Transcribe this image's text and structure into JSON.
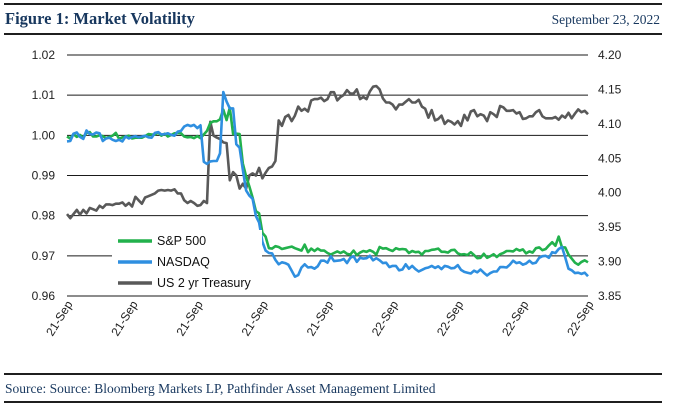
{
  "header": {
    "title": "Figure 1: Market Volatility",
    "date": "September 23, 2022"
  },
  "footer": {
    "source": "Source: Source: Bloomberg Markets LP, Pathfinder Asset Management Limited"
  },
  "chart_data": {
    "type": "line",
    "title": "Market Volatility",
    "xlabel": "",
    "ylabel_left": "",
    "ylabel_right": "",
    "x_tick_labels": [
      "21-Sep",
      "21-Sep",
      "21-Sep",
      "21-Sep",
      "21-Sep",
      "22-Sep",
      "22-Sep",
      "22-Sep",
      "22-Sep"
    ],
    "ylim_left": [
      0.96,
      1.02
    ],
    "yticks_left": [
      "0.96",
      "0.97",
      "0.98",
      "0.99",
      "1.00",
      "1.01",
      "1.02"
    ],
    "ylim_right": [
      3.85,
      4.2
    ],
    "yticks_right": [
      "3.85",
      "3.90",
      "3.95",
      "4.00",
      "4.05",
      "4.10",
      "4.15",
      "4.20"
    ],
    "grid": "horizontal",
    "legend_position": "lower-left",
    "series": [
      {
        "name": "S&P 500",
        "axis": "left",
        "color": "#22b14c",
        "x": [
          0,
          0.05,
          0.1,
          0.15,
          0.2,
          0.25,
          0.3,
          0.35,
          0.4,
          0.45,
          0.5,
          0.55,
          0.6,
          0.65,
          0.7,
          0.75,
          0.8,
          0.85,
          0.9,
          0.95,
          1,
          1.05,
          1.1,
          1.15,
          1.2,
          1.25,
          1.3,
          1.35,
          1.4,
          1.45,
          1.5,
          1.55,
          1.6,
          1.65,
          1.7,
          1.75,
          1.8,
          1.85,
          1.9,
          1.95,
          2,
          2.05,
          2.1,
          2.15,
          2.2,
          2.25,
          2.3,
          2.35,
          2.4,
          2.45,
          2.5,
          2.55,
          2.6,
          2.65,
          2.7,
          2.75,
          2.8,
          2.85,
          2.9,
          2.95,
          3,
          3.05,
          3.1,
          3.15,
          3.2,
          3.25,
          3.3,
          3.35,
          3.4,
          3.45,
          3.5,
          3.55,
          3.6,
          3.65,
          3.7,
          3.75,
          3.8,
          3.85,
          3.9,
          3.95,
          4,
          4.05,
          4.1,
          4.15,
          4.2,
          4.25,
          4.3,
          4.35,
          4.4,
          4.45,
          4.5,
          4.55,
          4.6,
          4.65,
          4.7,
          4.75,
          4.8,
          4.85,
          4.9,
          4.95,
          5,
          5.05,
          5.1,
          5.15,
          5.2,
          5.25,
          5.3,
          5.35,
          5.4,
          5.45,
          5.5,
          5.55,
          5.6,
          5.65,
          5.7,
          5.75,
          5.8,
          5.85,
          5.9,
          5.95,
          6,
          6.05,
          6.1,
          6.15,
          6.2,
          6.25,
          6.3,
          6.35,
          6.4,
          6.45,
          6.5,
          6.55,
          6.6,
          6.65,
          6.7,
          6.75,
          6.8,
          6.85,
          6.9,
          6.95,
          7,
          7.05,
          7.1,
          7.15,
          7.2,
          7.25,
          7.3,
          7.35,
          7.4,
          7.45,
          7.5,
          7.55,
          7.6,
          7.65,
          7.7,
          7.75,
          7.8,
          7.85,
          7.9,
          7.95,
          8
        ],
        "values": [
          0.9997,
          0.9992,
          1.0003,
          0.9996,
          1.0001,
          0.9994,
          1.0006,
          1.0008,
          0.9997,
          0.9997,
          1.0,
          0.9998,
          0.9993,
          0.9996,
          0.9999,
          1.0006,
          0.9991,
          0.9995,
          0.9997,
          0.9999,
          0.9992,
          0.9994,
          0.9994,
          0.9994,
          0.9998,
          1.0003,
          1.0002,
          1.0002,
          1.0007,
          0.9999,
          1.0004,
          0.9997,
          1.0001,
          1.0005,
          1.0006,
          1.0005,
          0.9997,
          0.9995,
          0.9996,
          0.9993,
          0.9998,
          0.9993,
          1.0002,
          1.0011,
          1.0031,
          1.0035,
          1.0035,
          1.004,
          1.0064,
          1.0038,
          1.0069,
          1.0003,
          1.0004,
          1.0003,
          0.993,
          0.9898,
          0.9873,
          0.9845,
          0.9811,
          0.9806,
          0.9757,
          0.9748,
          0.9719,
          0.9718,
          0.9724,
          0.9722,
          0.9717,
          0.9719,
          0.9721,
          0.9723,
          0.9719,
          0.9716,
          0.9713,
          0.9728,
          0.9709,
          0.9718,
          0.9712,
          0.9718,
          0.9713,
          0.9713,
          0.9707,
          0.9703,
          0.9707,
          0.9711,
          0.9707,
          0.9711,
          0.9705,
          0.9703,
          0.9713,
          0.9702,
          0.9708,
          0.9712,
          0.971,
          0.9714,
          0.971,
          0.9703,
          0.9722,
          0.9718,
          0.9719,
          0.9715,
          0.9712,
          0.9719,
          0.9716,
          0.9717,
          0.9716,
          0.9707,
          0.9712,
          0.9709,
          0.971,
          0.9703,
          0.9712,
          0.9712,
          0.9715,
          0.9716,
          0.9718,
          0.971,
          0.971,
          0.9708,
          0.9714,
          0.9715,
          0.9706,
          0.9703,
          0.9704,
          0.9702,
          0.9709,
          0.9702,
          0.9694,
          0.9695,
          0.9705,
          0.9695,
          0.9699,
          0.9704,
          0.9697,
          0.9704,
          0.9707,
          0.9712,
          0.9712,
          0.9711,
          0.9717,
          0.9713,
          0.9716,
          0.9706,
          0.9711,
          0.9708,
          0.9719,
          0.9721,
          0.9714,
          0.9717,
          0.9726,
          0.9734,
          0.9725,
          0.9748,
          0.9721,
          0.9721,
          0.9703,
          0.9693,
          0.9683,
          0.9678,
          0.9685,
          0.9689,
          0.9684
        ]
      },
      {
        "name": "NASDAQ",
        "axis": "left",
        "color": "#2f8fe0",
        "x": [
          0,
          0.05,
          0.1,
          0.15,
          0.2,
          0.25,
          0.3,
          0.35,
          0.4,
          0.45,
          0.5,
          0.55,
          0.6,
          0.65,
          0.7,
          0.75,
          0.8,
          0.85,
          0.9,
          0.95,
          1,
          1.05,
          1.1,
          1.15,
          1.2,
          1.25,
          1.3,
          1.35,
          1.4,
          1.45,
          1.5,
          1.55,
          1.6,
          1.65,
          1.7,
          1.75,
          1.8,
          1.85,
          1.9,
          1.95,
          2,
          2.05,
          2.1,
          2.15,
          2.2,
          2.25,
          2.3,
          2.35,
          2.4,
          2.45,
          2.5,
          2.55,
          2.6,
          2.65,
          2.7,
          2.75,
          2.8,
          2.85,
          2.9,
          2.95,
          3,
          3.05,
          3.1,
          3.15,
          3.2,
          3.25,
          3.3,
          3.35,
          3.4,
          3.45,
          3.5,
          3.55,
          3.6,
          3.65,
          3.7,
          3.75,
          3.8,
          3.85,
          3.9,
          3.95,
          4,
          4.05,
          4.1,
          4.15,
          4.2,
          4.25,
          4.3,
          4.35,
          4.4,
          4.45,
          4.5,
          4.55,
          4.6,
          4.65,
          4.7,
          4.75,
          4.8,
          4.85,
          4.9,
          4.95,
          5,
          5.05,
          5.1,
          5.15,
          5.2,
          5.25,
          5.3,
          5.35,
          5.4,
          5.45,
          5.5,
          5.55,
          5.6,
          5.65,
          5.7,
          5.75,
          5.8,
          5.85,
          5.9,
          5.95,
          6,
          6.05,
          6.1,
          6.15,
          6.2,
          6.25,
          6.3,
          6.35,
          6.4,
          6.45,
          6.5,
          6.55,
          6.6,
          6.65,
          6.7,
          6.75,
          6.8,
          6.85,
          6.9,
          6.95,
          7,
          7.05,
          7.1,
          7.15,
          7.2,
          7.25,
          7.3,
          7.35,
          7.4,
          7.45,
          7.5,
          7.55,
          7.6,
          7.65,
          7.7,
          7.75,
          7.8,
          7.85,
          7.9,
          7.95,
          8
        ],
        "values": [
          0.9985,
          0.9986,
          1.0004,
          1.0007,
          0.9996,
          0.9991,
          1.0012,
          1.0003,
          1.0002,
          1.0007,
          1.0005,
          0.9986,
          0.9992,
          0.9994,
          0.9989,
          0.9986,
          0.9989,
          0.9985,
          0.9997,
          0.9992,
          0.9996,
          0.9998,
          0.9995,
          0.9997,
          0.9999,
          0.9995,
          0.9994,
          1.0006,
          1.0008,
          1.0002,
          1.0003,
          1.0005,
          1.0001,
          0.9999,
          1.0009,
          1.0011,
          1.0022,
          1.0026,
          1.0023,
          1.0026,
          1.0018,
          1.0025,
          0.9934,
          0.9929,
          0.9935,
          0.9936,
          0.9936,
          0.9955,
          1.0108,
          1.0084,
          1.0067,
          1.0067,
          0.9978,
          0.9969,
          0.9915,
          0.9863,
          0.985,
          0.9842,
          0.9799,
          0.9783,
          0.9735,
          0.9713,
          0.9707,
          0.9706,
          0.969,
          0.9679,
          0.9684,
          0.9682,
          0.9678,
          0.9663,
          0.9648,
          0.9652,
          0.9671,
          0.9679,
          0.9671,
          0.9672,
          0.9668,
          0.9674,
          0.9688,
          0.9688,
          0.9683,
          0.9699,
          0.9687,
          0.9688,
          0.9689,
          0.9692,
          0.9682,
          0.9695,
          0.9699,
          0.9685,
          0.9695,
          0.9693,
          0.9694,
          0.97,
          0.9689,
          0.9694,
          0.9689,
          0.9682,
          0.9683,
          0.9672,
          0.9675,
          0.9675,
          0.9664,
          0.9666,
          0.9679,
          0.9668,
          0.9675,
          0.9667,
          0.9661,
          0.9665,
          0.9669,
          0.9671,
          0.9675,
          0.967,
          0.9674,
          0.9667,
          0.9675,
          0.9673,
          0.9669,
          0.967,
          0.9677,
          0.9665,
          0.966,
          0.9658,
          0.9656,
          0.9663,
          0.9659,
          0.9666,
          0.9658,
          0.9651,
          0.9657,
          0.9661,
          0.9661,
          0.9672,
          0.9672,
          0.9671,
          0.9678,
          0.9688,
          0.9682,
          0.9684,
          0.9678,
          0.9681,
          0.9688,
          0.9681,
          0.9683,
          0.9695,
          0.9699,
          0.97,
          0.9695,
          0.9709,
          0.9707,
          0.9717,
          0.9722,
          0.9696,
          0.9668,
          0.9664,
          0.9657,
          0.9658,
          0.9655,
          0.9658,
          0.9649
        ]
      },
      {
        "name": "US 2 yr Treasury",
        "axis": "right",
        "color": "#595959",
        "x": [
          0,
          0.05,
          0.1,
          0.15,
          0.2,
          0.25,
          0.3,
          0.35,
          0.4,
          0.45,
          0.5,
          0.55,
          0.6,
          0.65,
          0.7,
          0.75,
          0.8,
          0.85,
          0.9,
          0.95,
          1,
          1.05,
          1.1,
          1.15,
          1.2,
          1.25,
          1.3,
          1.35,
          1.4,
          1.45,
          1.5,
          1.55,
          1.6,
          1.65,
          1.7,
          1.75,
          1.8,
          1.85,
          1.9,
          1.95,
          2,
          2.05,
          2.1,
          2.15,
          2.2,
          2.25,
          2.3,
          2.35,
          2.4,
          2.45,
          2.5,
          2.55,
          2.6,
          2.65,
          2.7,
          2.75,
          2.8,
          2.85,
          2.9,
          2.95,
          3,
          3.05,
          3.1,
          3.15,
          3.2,
          3.25,
          3.3,
          3.35,
          3.4,
          3.45,
          3.5,
          3.55,
          3.6,
          3.65,
          3.7,
          3.75,
          3.8,
          3.85,
          3.9,
          3.95,
          4,
          4.05,
          4.1,
          4.15,
          4.2,
          4.25,
          4.3,
          4.35,
          4.4,
          4.45,
          4.5,
          4.55,
          4.6,
          4.65,
          4.7,
          4.75,
          4.8,
          4.85,
          4.9,
          4.95,
          5,
          5.05,
          5.1,
          5.15,
          5.2,
          5.25,
          5.3,
          5.35,
          5.4,
          5.45,
          5.5,
          5.55,
          5.6,
          5.65,
          5.7,
          5.75,
          5.8,
          5.85,
          5.9,
          5.95,
          6,
          6.05,
          6.1,
          6.15,
          6.2,
          6.25,
          6.3,
          6.35,
          6.4,
          6.45,
          6.5,
          6.55,
          6.6,
          6.65,
          6.7,
          6.75,
          6.8,
          6.85,
          6.9,
          6.95,
          7,
          7.05,
          7.1,
          7.15,
          7.2,
          7.25,
          7.3,
          7.35,
          7.4,
          7.45,
          7.5,
          7.55,
          7.6,
          7.65,
          7.7,
          7.75,
          7.8,
          7.85,
          7.9,
          7.95,
          8
        ],
        "values": [
          3.969,
          3.963,
          3.969,
          3.975,
          3.968,
          3.975,
          3.97,
          3.978,
          3.976,
          3.974,
          3.981,
          3.978,
          3.983,
          3.983,
          3.982,
          3.984,
          3.984,
          3.986,
          3.981,
          3.985,
          3.98,
          3.994,
          3.989,
          3.984,
          3.993,
          3.995,
          3.997,
          3.999,
          4.003,
          4.004,
          4.003,
          4.004,
          4.003,
          4.005,
          3.999,
          3.999,
          3.989,
          3.985,
          3.988,
          3.985,
          3.981,
          3.982,
          3.988,
          3.985,
          4.103,
          4.083,
          4.08,
          4.078,
          4.073,
          4.072,
          4.018,
          4.03,
          4.025,
          4.006,
          4.013,
          4.006,
          4.025,
          4.028,
          4.025,
          4.036,
          4.021,
          4.029,
          4.036,
          4.038,
          4.046,
          4.105,
          4.097,
          4.11,
          4.113,
          4.104,
          4.112,
          4.125,
          4.119,
          4.122,
          4.118,
          4.134,
          4.136,
          4.136,
          4.138,
          4.133,
          4.136,
          4.146,
          4.146,
          4.134,
          4.139,
          4.142,
          4.149,
          4.144,
          4.144,
          4.15,
          4.136,
          4.139,
          4.136,
          4.147,
          4.154,
          4.155,
          4.15,
          4.137,
          4.131,
          4.131,
          4.128,
          4.121,
          4.128,
          4.128,
          4.132,
          4.136,
          4.131,
          4.131,
          4.135,
          4.125,
          4.122,
          4.109,
          4.12,
          4.105,
          4.107,
          4.112,
          4.1,
          4.105,
          4.103,
          4.099,
          4.104,
          4.097,
          4.113,
          4.105,
          4.118,
          4.12,
          4.111,
          4.114,
          4.112,
          4.104,
          4.117,
          4.114,
          4.11,
          4.126,
          4.124,
          4.119,
          4.119,
          4.12,
          4.115,
          4.117,
          4.107,
          4.108,
          4.111,
          4.111,
          4.117,
          4.12,
          4.111,
          4.108,
          4.108,
          4.108,
          4.11,
          4.106,
          4.112,
          4.109,
          4.116,
          4.108,
          4.115,
          4.121,
          4.117,
          4.119,
          4.114
        ]
      }
    ]
  }
}
